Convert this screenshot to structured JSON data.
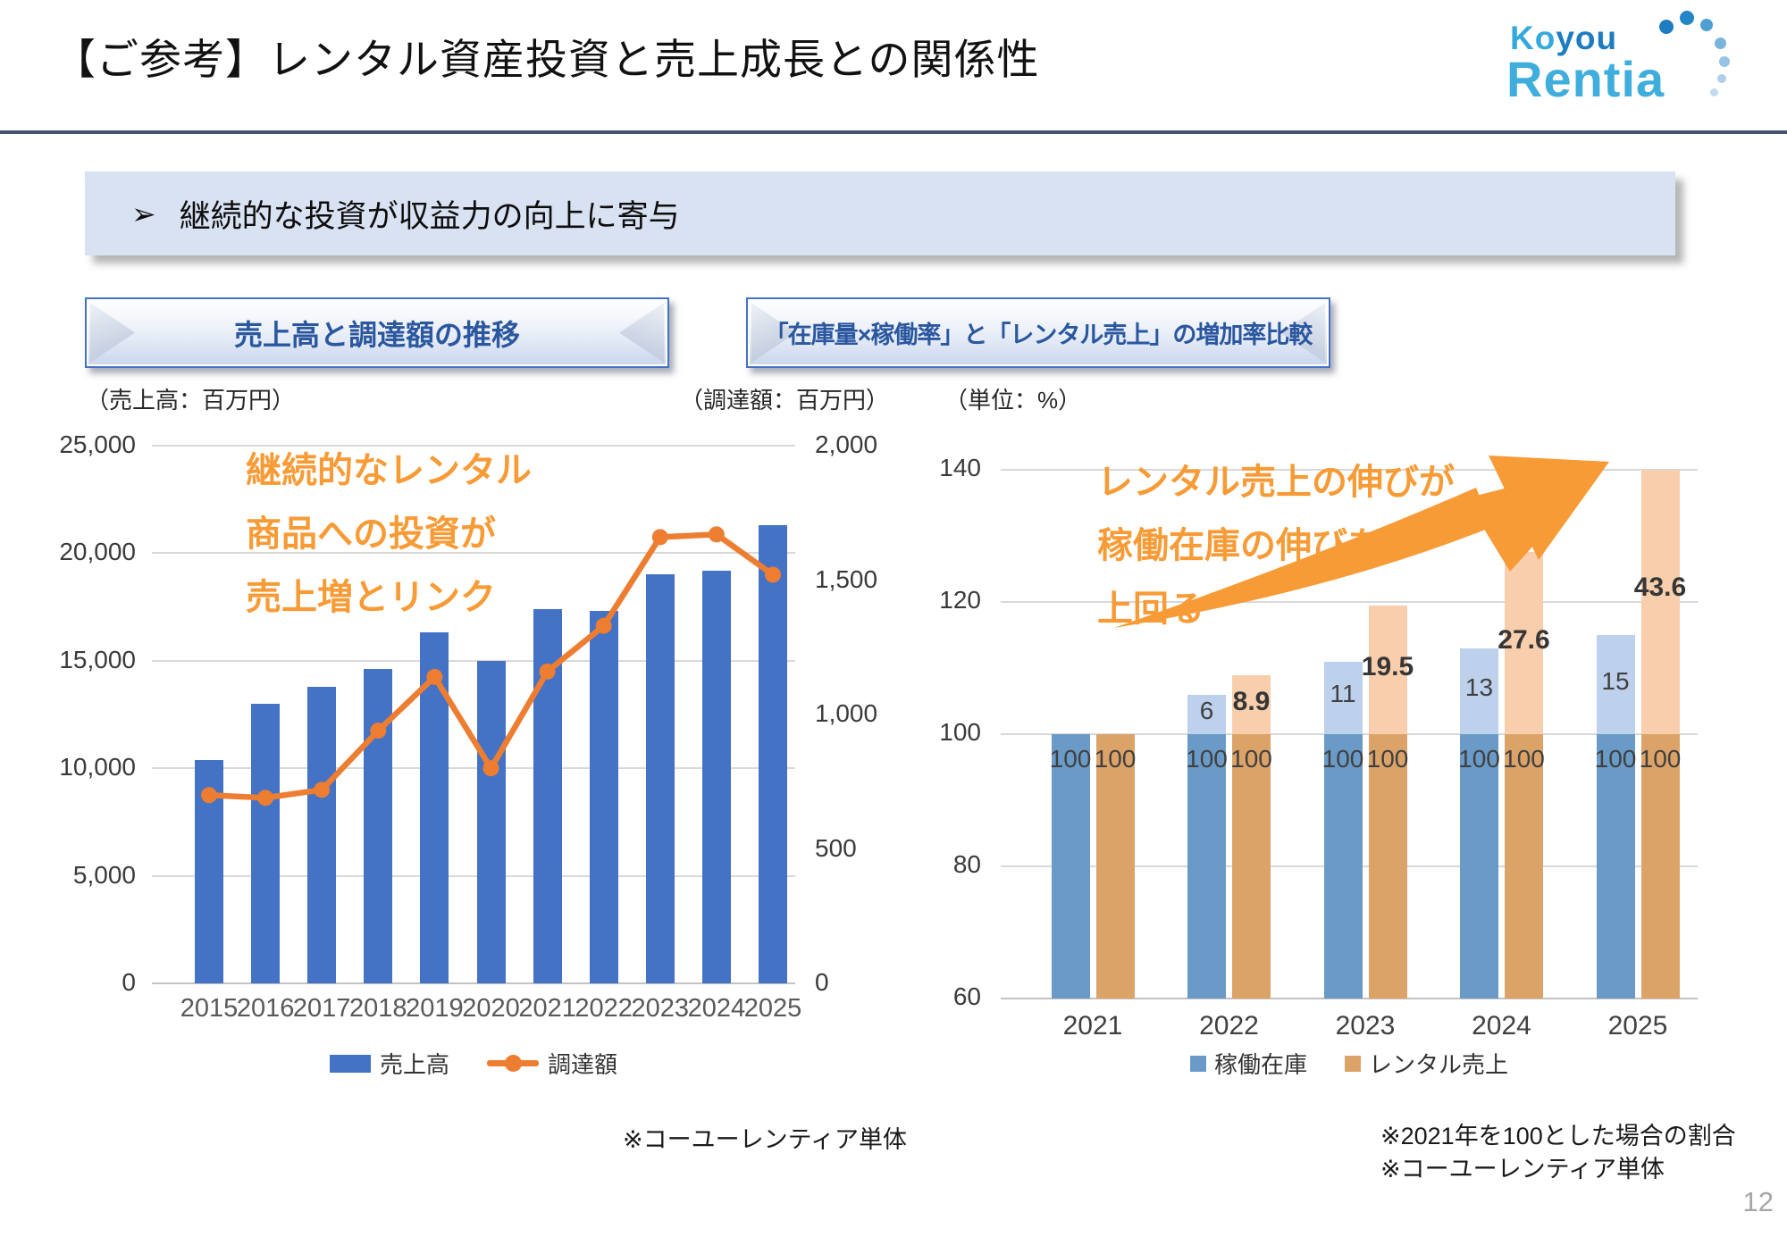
{
  "slide": {
    "title": "【ご参考】レンタル資産投資と売上成長との関係性",
    "banner_bullet": "➢",
    "banner": "継続的な投資が収益力の向上に寄与",
    "page_number": "12"
  },
  "logo": {
    "word1": "Koyou",
    "word2": "Rentia"
  },
  "colors": {
    "sales_bar_blue": "#4472C4",
    "procurement_line_orange": "#ED7D31",
    "inventory_base_blue": "#6A9BC8",
    "inventory_increment_blue": "#BDD0EC",
    "rental_base_tan": "#DCA368",
    "rental_increment_tan": "#F8CEAC",
    "annotation_orange": "#F79B36",
    "header_text_blue": "#2B579F",
    "header_border_blue": "#4472C4",
    "banner_bg": "#D9E2F2",
    "title_rule": "#44546A",
    "gridline_gray": "#D9D9D9",
    "logo_blue_dark": "#1E7CC0",
    "logo_blue_light": "#3FAEDD",
    "page_number_gray": "#A6A6A6"
  },
  "left_panel": {
    "header": "売上高と調達額の推移",
    "unit_left": "（売上高：百万円）",
    "unit_right": "（調達額：百万円）",
    "annotation": [
      "継続的なレンタル",
      "商品への投資が",
      "売上増とリンク"
    ],
    "legend": [
      {
        "label": "売上高",
        "type": "bar",
        "color": "#4472C4"
      },
      {
        "label": "調達額",
        "type": "line",
        "color": "#ED7D31"
      }
    ],
    "footnote": "※コーユーレンティア単体"
  },
  "right_panel": {
    "header": "「在庫量×稼働率」と「レンタル売上」の増加率比較",
    "unit": "（単位：%）",
    "annotation": [
      "レンタル売上の伸びが",
      "稼働在庫の伸びを",
      "上回る"
    ],
    "legend": [
      {
        "label": "稼働在庫",
        "color": "#6A9BC8"
      },
      {
        "label": "レンタル売上",
        "color": "#DCA368"
      }
    ],
    "footnotes": [
      "※2021年を100とした場合の割合",
      "※コーユーレンティア単体"
    ]
  },
  "chart_data": [
    {
      "type": "bar",
      "title": "売上高と調達額の推移",
      "categories": [
        "2015",
        "2016",
        "2017",
        "2018",
        "2019",
        "2020",
        "2021",
        "2022",
        "2023",
        "2024",
        "2025"
      ],
      "series": [
        {
          "name": "売上高",
          "type": "bar",
          "axis": "left",
          "color": "#4472C4",
          "values": [
            10400,
            13000,
            13800,
            14600,
            16300,
            15000,
            17400,
            17300,
            19000,
            19200,
            21300
          ]
        },
        {
          "name": "調達額",
          "type": "line",
          "axis": "right",
          "color": "#ED7D31",
          "values": [
            700,
            690,
            720,
            940,
            1140,
            800,
            1160,
            1330,
            1660,
            1670,
            1520
          ]
        }
      ],
      "left_axis": {
        "label": "売上高：百万円",
        "min": 0,
        "max": 25000,
        "ticks": [
          "0",
          "5,000",
          "10,000",
          "15,000",
          "20,000",
          "25,000"
        ]
      },
      "right_axis": {
        "label": "調達額：百万円",
        "min": 0,
        "max": 2000,
        "ticks": [
          "0",
          "500",
          "1,000",
          "1,500",
          "2,000"
        ]
      },
      "grid": true,
      "legend_position": "bottom"
    },
    {
      "type": "bar",
      "subtype": "stacked",
      "title": "「在庫量×稼働率」と「レンタル売上」の増加率比較",
      "categories": [
        "2021",
        "2022",
        "2023",
        "2024",
        "2025"
      ],
      "base_value": 100,
      "base_labels": "100",
      "series": [
        {
          "name": "稼働在庫",
          "color_base": "#6A9BC8",
          "color_increment": "#BDD0EC",
          "totals": [
            100,
            106,
            111,
            113,
            115
          ],
          "increments": [
            0,
            6,
            11,
            13,
            15
          ],
          "increment_labels": [
            "",
            "6",
            "11",
            "13",
            "15"
          ]
        },
        {
          "name": "レンタル売上",
          "color_base": "#DCA368",
          "color_increment": "#F8CEAC",
          "totals": [
            100,
            108.9,
            119.5,
            127.6,
            143.6
          ],
          "increments": [
            0,
            8.9,
            19.5,
            27.6,
            43.6
          ],
          "increment_labels": [
            "",
            "8.9",
            "19.5",
            "27.6",
            "43.6"
          ]
        }
      ],
      "axis": {
        "label": "単位：%",
        "min": 60,
        "max": 140,
        "ticks": [
          "60",
          "80",
          "100",
          "120",
          "140"
        ]
      },
      "grid": true,
      "legend_position": "bottom"
    }
  ]
}
